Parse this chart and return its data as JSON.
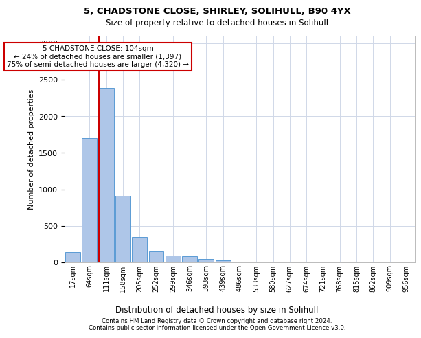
{
  "title1": "5, CHADSTONE CLOSE, SHIRLEY, SOLIHULL, B90 4YX",
  "title2": "Size of property relative to detached houses in Solihull",
  "xlabel": "Distribution of detached houses by size in Solihull",
  "ylabel": "Number of detached properties",
  "bin_labels": [
    "17sqm",
    "64sqm",
    "111sqm",
    "158sqm",
    "205sqm",
    "252sqm",
    "299sqm",
    "346sqm",
    "393sqm",
    "439sqm",
    "486sqm",
    "533sqm",
    "580sqm",
    "627sqm",
    "674sqm",
    "721sqm",
    "768sqm",
    "815sqm",
    "862sqm",
    "909sqm",
    "956sqm"
  ],
  "bar_heights": [
    140,
    1700,
    2390,
    910,
    345,
    155,
    90,
    80,
    45,
    25,
    10,
    5,
    3,
    0,
    0,
    0,
    0,
    0,
    0,
    0,
    0
  ],
  "bar_color": "#aec6e8",
  "bar_edge_color": "#5b9bd5",
  "marker_line_color": "#cc0000",
  "annotation_text": "5 CHADSTONE CLOSE: 104sqm\n← 24% of detached houses are smaller (1,397)\n75% of semi-detached houses are larger (4,320) →",
  "annotation_box_color": "#cc0000",
  "ylim": [
    0,
    3100
  ],
  "yticks": [
    0,
    500,
    1000,
    1500,
    2000,
    2500,
    3000
  ],
  "footer1": "Contains HM Land Registry data © Crown copyright and database right 2024.",
  "footer2": "Contains public sector information licensed under the Open Government Licence v3.0.",
  "bg_color": "#ffffff",
  "grid_color": "#d0d8e8"
}
